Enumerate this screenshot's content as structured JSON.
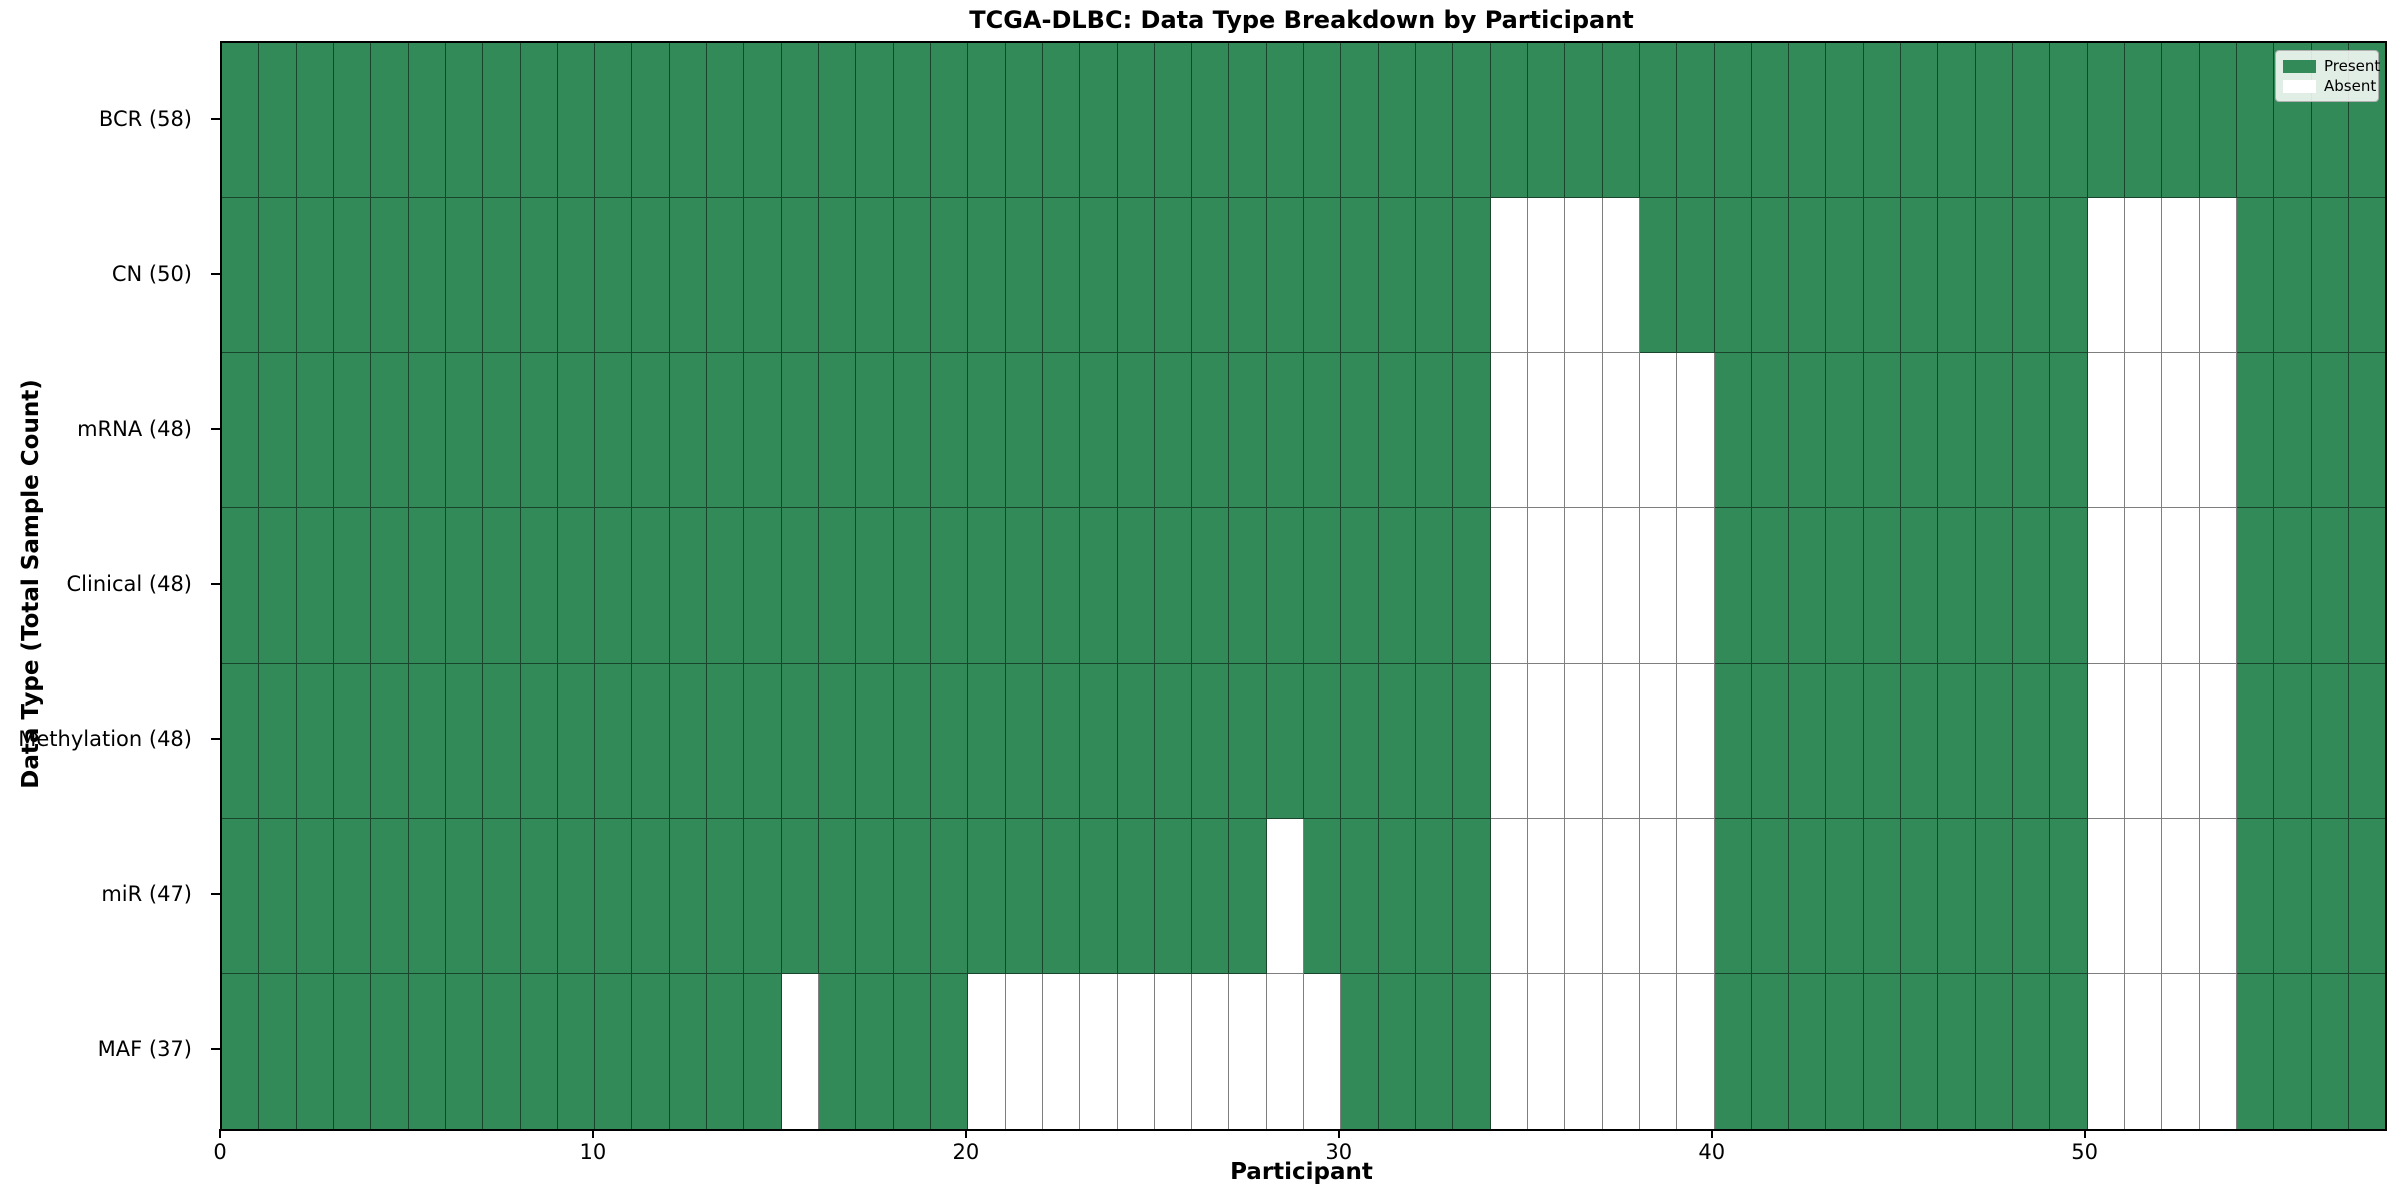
{
  "title": "TCGA-DLBC: Data Type Breakdown by Participant",
  "axes": {
    "xlabel": "Participant",
    "ylabel": "Data Type (Total Sample Count)"
  },
  "legend": {
    "entries": [
      {
        "label": "Present",
        "color": "#318a57"
      },
      {
        "label": "Absent",
        "color": "#ffffff"
      }
    ]
  },
  "chart_data": {
    "type": "heatmap",
    "title": "TCGA-DLBC: Data Type Breakdown by Participant",
    "xlabel": "Participant",
    "ylabel": "Data Type (Total Sample Count)",
    "n_participants": 58,
    "x_ticks": [
      0,
      10,
      20,
      30,
      40,
      50
    ],
    "value_legend": {
      "present": "Present",
      "absent": "Absent"
    },
    "colors": {
      "present": "#318a57",
      "absent": "#ffffff",
      "edge": "rgba(0,0,0,0.5)"
    },
    "rows": [
      {
        "label": "BCR (58)",
        "data_type": "BCR",
        "total_samples": 58,
        "absent_participants": []
      },
      {
        "label": "CN (50)",
        "data_type": "CN",
        "total_samples": 50,
        "absent_participants": [
          34,
          35,
          36,
          37,
          50,
          51,
          52,
          53
        ]
      },
      {
        "label": "mRNA (48)",
        "data_type": "mRNA",
        "total_samples": 48,
        "absent_participants": [
          34,
          35,
          36,
          37,
          38,
          39,
          50,
          51,
          52,
          53
        ]
      },
      {
        "label": "Clinical (48)",
        "data_type": "Clinical",
        "total_samples": 48,
        "absent_participants": [
          34,
          35,
          36,
          37,
          38,
          39,
          50,
          51,
          52,
          53
        ]
      },
      {
        "label": "Methylation (48)",
        "data_type": "Methylation",
        "total_samples": 48,
        "absent_participants": [
          34,
          35,
          36,
          37,
          38,
          39,
          50,
          51,
          52,
          53
        ]
      },
      {
        "label": "miR (47)",
        "data_type": "miR",
        "total_samples": 47,
        "absent_participants": [
          28,
          34,
          35,
          36,
          37,
          38,
          39,
          50,
          51,
          52,
          53
        ]
      },
      {
        "label": "MAF (37)",
        "data_type": "MAF",
        "total_samples": 37,
        "absent_participants": [
          15,
          20,
          21,
          22,
          23,
          24,
          25,
          26,
          27,
          28,
          29,
          34,
          35,
          36,
          37,
          38,
          39,
          50,
          51,
          52,
          53
        ]
      }
    ]
  }
}
